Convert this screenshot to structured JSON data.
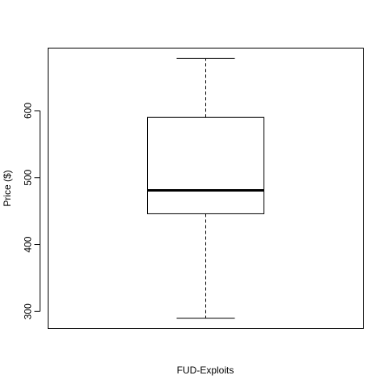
{
  "chart_data": {
    "type": "boxplot",
    "title": "",
    "xlabel": "FUD-Exploits",
    "ylabel": "Price ($)",
    "ylim": [
      275,
      693
    ],
    "yticks": [
      300,
      400,
      500,
      600
    ],
    "grid": false,
    "box": {
      "whisker_low": 290,
      "q1": 446,
      "median": 481,
      "q3": 590,
      "whisker_high": 678
    }
  }
}
